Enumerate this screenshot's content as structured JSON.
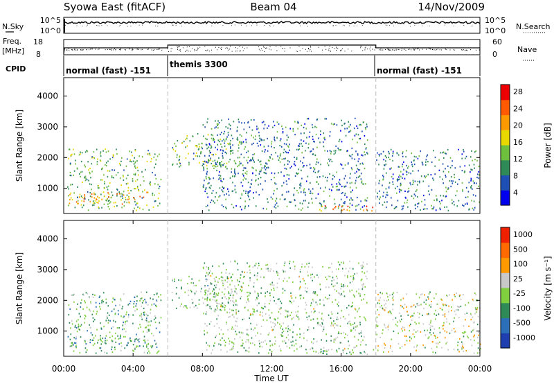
{
  "header": {
    "station": "Syowa East (fitACF)",
    "beam": "Beam 04",
    "date": "14/Nov/2009"
  },
  "top_panel": {
    "left_label": "N.Sky",
    "right_label": "N.Search",
    "left_ticks": [
      "10^5",
      "10^0"
    ],
    "right_ticks": [
      "10^5",
      "10^0"
    ]
  },
  "freq_panel": {
    "left_label_line1": "Freq.",
    "left_label_line2": "[MHz]",
    "right_label": "Nave",
    "left_ticks": [
      "18",
      "8"
    ],
    "right_ticks": [
      "60",
      "0"
    ]
  },
  "cpid": {
    "label": "CPID",
    "segments": [
      "normal (fast) -151",
      "themis 3300",
      "normal (fast) -151"
    ]
  },
  "power_panel": {
    "ylabel": "Slant Range [km]",
    "yticks": [
      "4000",
      "3000",
      "2000",
      "1000"
    ],
    "colorbar_label": "Power [dB]",
    "colorbar_ticks": [
      "28",
      "24",
      "20",
      "16",
      "12",
      "8",
      "4"
    ],
    "colors": [
      "#0000ee",
      "#1e4fb4",
      "#2e8b57",
      "#6fbf3f",
      "#e8d800",
      "#ff9900",
      "#ff5a00",
      "#ee0000"
    ]
  },
  "velocity_panel": {
    "ylabel": "Slant Range [km]",
    "yticks": [
      "4000",
      "3000",
      "2000",
      "1000"
    ],
    "colorbar_label": "Velocity [m s⁻¹]",
    "colorbar_ticks": [
      "1000",
      "500",
      "100",
      "25",
      "-25",
      "-100",
      "-500",
      "-1000"
    ],
    "colors": [
      "#1f3fb0",
      "#2a6fb8",
      "#2e8b57",
      "#7fcf3f",
      "#c8c8c8",
      "#ff9900",
      "#ff6a00",
      "#ee2000"
    ]
  },
  "x_axis": {
    "ticks": [
      "00:00",
      "04:00",
      "08:00",
      "12:00",
      "16:00",
      "20:00",
      "00:00"
    ],
    "label": "Time UT"
  },
  "chart_data": {
    "type": "heatmap",
    "x_range_hours": [
      0,
      24
    ],
    "y_range_km": [
      180,
      4600
    ],
    "mode_changes_hours": [
      6,
      18
    ],
    "power_db_range": [
      0,
      30
    ],
    "velocity_range_ms": [
      -1200,
      1200
    ],
    "regions": [
      {
        "name": "early-ground-scatter",
        "t": [
          0.2,
          5.6
        ],
        "r": [
          300,
          2300
        ],
        "power": 12,
        "velocity": -300
      },
      {
        "name": "early-dense-band",
        "t": [
          0.3,
          4.8
        ],
        "r": [
          500,
          900
        ],
        "power": 20,
        "velocity": -400
      },
      {
        "name": "morning-patch",
        "t": [
          6.2,
          10.3
        ],
        "r": [
          1700,
          2800
        ],
        "power": 12,
        "velocity": -200
      },
      {
        "name": "morning-arc",
        "t": [
          9.8,
          12.0
        ],
        "r": [
          1500,
          1700
        ],
        "power": 8,
        "velocity": 0
      },
      {
        "name": "mid-scatter",
        "t": [
          8.0,
          17.5
        ],
        "r": [
          300,
          3300
        ],
        "power": 8,
        "velocity": -100
      },
      {
        "name": "afternoon-near",
        "t": [
          14.5,
          17.9
        ],
        "r": [
          250,
          450
        ],
        "power": 22,
        "velocity": -200
      },
      {
        "name": "evening-scatter",
        "t": [
          18.0,
          24.0
        ],
        "r": [
          300,
          2300
        ],
        "power": 8,
        "velocity": 0
      }
    ]
  }
}
